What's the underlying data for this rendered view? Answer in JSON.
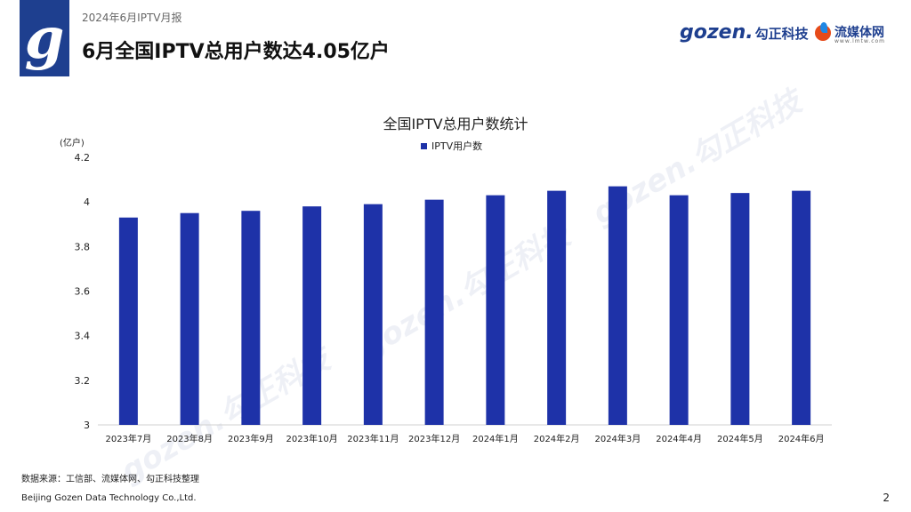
{
  "header": {
    "subtitle": "2024年6月IPTV月报",
    "title": "6月全国IPTV总用户数达4.05亿户",
    "logo_letter": "g",
    "brand1_latin": "gozen.",
    "brand1_cn": "勾正科技",
    "brand2_name": "流媒体网",
    "brand2_url": "www.lmtw.com",
    "watermark": "gozen.勾正科技"
  },
  "colors": {
    "bar": "#1e32a8",
    "brand": "#1e3f8f"
  },
  "chart_data": {
    "type": "bar",
    "title": "全国IPTV总用户数统计",
    "ylabel": "(亿户)",
    "xlabel": "",
    "legend": "IPTV用户数",
    "ylim": [
      3,
      4.2
    ],
    "yticks": [
      3,
      3.2,
      3.4,
      3.6,
      3.8,
      4,
      4.2
    ],
    "ytick_labels": [
      "3",
      "3.2",
      "3.4",
      "3.6",
      "3.8",
      "4",
      "4.2"
    ],
    "categories": [
      "2023年7月",
      "2023年8月",
      "2023年9月",
      "2023年10月",
      "2023年11月",
      "2023年12月",
      "2024年1月",
      "2024年2月",
      "2024年3月",
      "2024年4月",
      "2024年5月",
      "2024年6月"
    ],
    "values": [
      3.93,
      3.95,
      3.96,
      3.98,
      3.99,
      4.01,
      4.03,
      4.05,
      4.07,
      4.03,
      4.04,
      4.05
    ]
  },
  "footer": {
    "source": "数据来源：工信部、流媒体网、勾正科技整理",
    "company": "Beijing Gozen Data Technology Co.,Ltd.",
    "page": "2"
  }
}
